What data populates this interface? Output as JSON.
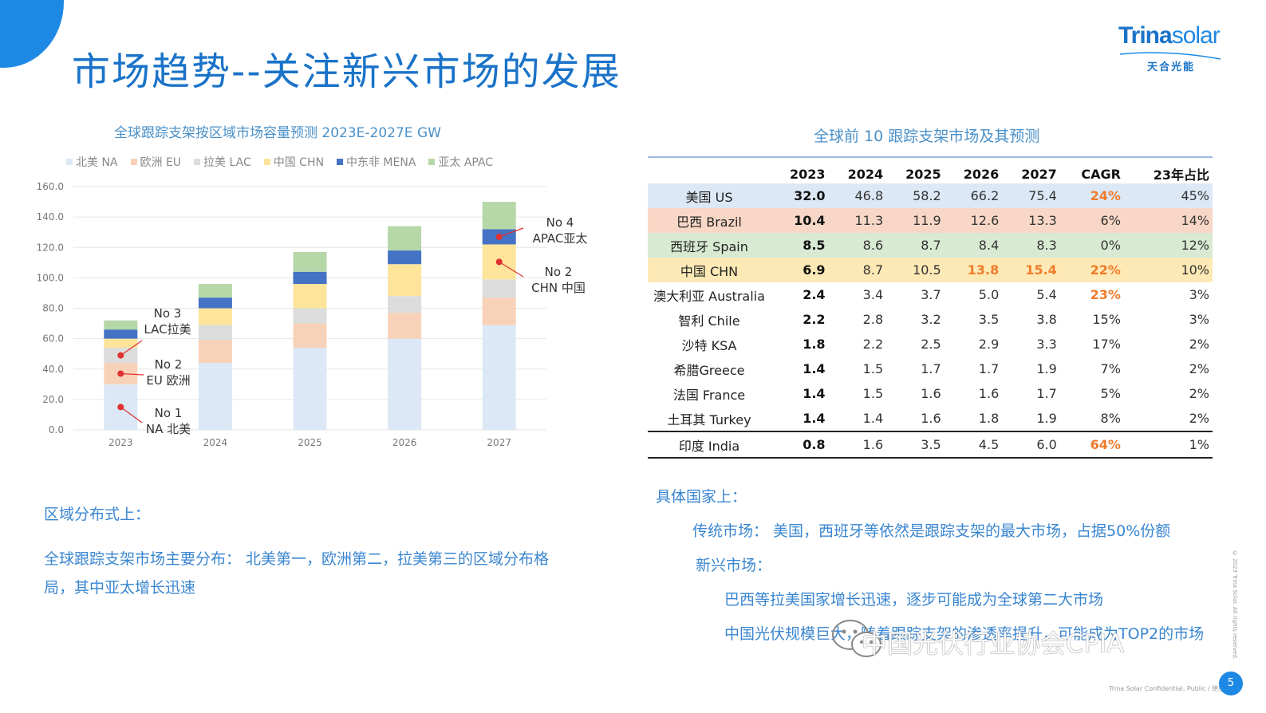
{
  "slide": {
    "title": "市场趋势--关注新兴市场的发展",
    "logo_main_bold": "Trina",
    "logo_main_light": "solar",
    "logo_sub": "天合光能",
    "footer": "Trina Solar Confidential, Public / 绝密",
    "page_number": "5",
    "side_copyright": "© 2023 Trina Solar. All rights reserved.",
    "watermark": "中国光伏行业协会CPIA"
  },
  "chart_data": {
    "type": "bar",
    "stacked": true,
    "title": "全球跟踪支架按区域市场容量预测 2023E-2027E GW",
    "categories": [
      "2023",
      "2024",
      "2025",
      "2026",
      "2027"
    ],
    "ylim": [
      0,
      160
    ],
    "yticks": [
      "0.0",
      "20.0",
      "40.0",
      "60.0",
      "80.0",
      "100.0",
      "120.0",
      "140.0",
      "160.0"
    ],
    "grid": true,
    "legend_position": "top",
    "series": [
      {
        "name": "北美 NA",
        "color": "#dce8f5",
        "values": [
          30,
          44,
          54,
          60,
          69
        ]
      },
      {
        "name": "欧洲 EU",
        "color": "#f8d2b8",
        "values": [
          14,
          15,
          16,
          17,
          18
        ]
      },
      {
        "name": "拉美 LAC",
        "color": "#dcdcdc",
        "values": [
          10,
          10,
          10,
          11,
          12
        ]
      },
      {
        "name": "中国 CHN",
        "color": "#fde49a",
        "values": [
          6,
          11,
          16,
          21,
          23
        ]
      },
      {
        "name": "中东非 MENA",
        "color": "#4472c4",
        "values": [
          6,
          7,
          8,
          9,
          10
        ]
      },
      {
        "name": "亚太 APAC",
        "color": "#b6d7a8",
        "values": [
          6,
          9,
          13,
          16,
          18
        ]
      }
    ],
    "annotations": [
      {
        "line1": "No 1",
        "line2": "NA 北美"
      },
      {
        "line1": "No 2",
        "line2": "EU 欧洲"
      },
      {
        "line1": "No 3",
        "line2": "LAC拉美"
      },
      {
        "line1": "No 2",
        "line2": "CHN 中国"
      },
      {
        "line1": "No 4",
        "line2": "APAC亚太"
      }
    ]
  },
  "table": {
    "title": "全球前 10 跟踪支架市场及其预测",
    "headers": [
      "",
      "2023",
      "2024",
      "2025",
      "2026",
      "2027",
      "CAGR",
      "23年占比"
    ],
    "rows": [
      {
        "cells": [
          "美国 US",
          "32.0",
          "46.8",
          "58.2",
          "66.2",
          "75.4",
          "24%",
          "45%"
        ],
        "highlight": "#dce8f5",
        "orange": [
          6
        ]
      },
      {
        "cells": [
          "巴西 Brazil",
          "10.4",
          "11.3",
          "11.9",
          "12.6",
          "13.3",
          "6%",
          "14%"
        ],
        "highlight": "#f8d7c6",
        "orange": []
      },
      {
        "cells": [
          "西班牙 Spain",
          "8.5",
          "8.6",
          "8.7",
          "8.4",
          "8.3",
          "0%",
          "12%"
        ],
        "highlight": "#d9ead3",
        "orange": []
      },
      {
        "cells": [
          "中国 CHN",
          "6.9",
          "8.7",
          "10.5",
          "13.8",
          "15.4",
          "22%",
          "10%"
        ],
        "highlight": "#fde9b5",
        "orange": [
          4,
          5,
          6
        ]
      },
      {
        "cells": [
          "澳大利亚 Australia",
          "2.4",
          "3.4",
          "3.7",
          "5.0",
          "5.4",
          "23%",
          "3%"
        ],
        "highlight": "",
        "orange": [
          6
        ]
      },
      {
        "cells": [
          "智利 Chile",
          "2.2",
          "2.8",
          "3.2",
          "3.5",
          "3.8",
          "15%",
          "3%"
        ],
        "highlight": "",
        "orange": []
      },
      {
        "cells": [
          "沙特 KSA",
          "1.8",
          "2.2",
          "2.5",
          "2.9",
          "3.3",
          "17%",
          "2%"
        ],
        "highlight": "",
        "orange": []
      },
      {
        "cells": [
          "希腊Greece",
          "1.4",
          "1.5",
          "1.7",
          "1.7",
          "1.9",
          "7%",
          "2%"
        ],
        "highlight": "",
        "orange": []
      },
      {
        "cells": [
          "法国 France",
          "1.4",
          "1.5",
          "1.6",
          "1.6",
          "1.7",
          "5%",
          "2%"
        ],
        "highlight": "",
        "orange": []
      },
      {
        "cells": [
          "土耳其 Turkey",
          "1.4",
          "1.4",
          "1.6",
          "1.8",
          "1.9",
          "8%",
          "2%"
        ],
        "highlight": "",
        "orange": []
      },
      {
        "cells": [
          "印度 India",
          "0.8",
          "1.6",
          "3.5",
          "4.5",
          "6.0",
          "64%",
          "1%"
        ],
        "highlight": "",
        "orange": [
          6
        ],
        "last": true
      }
    ]
  },
  "notes": {
    "left_heading": "区域分布式上：",
    "left_line1": "全球跟踪支架市场主要分布： 北美第一，欧洲第二，拉美第三的区域分布格",
    "left_line2": "局，其中亚太增长迅速",
    "right_heading": "具体国家上：",
    "right_line1": "传统市场： 美国，西班牙等依然是跟踪支架的最大市场，占据50%份额",
    "right_line2": "新兴市场：",
    "right_line3": "巴西等拉美国家增长迅速，逐步可能成为全球第二大市场",
    "right_line4": "中国光伏规模巨大，随着跟踪支架的渗透率提升，可能成为TOP2的市场"
  }
}
